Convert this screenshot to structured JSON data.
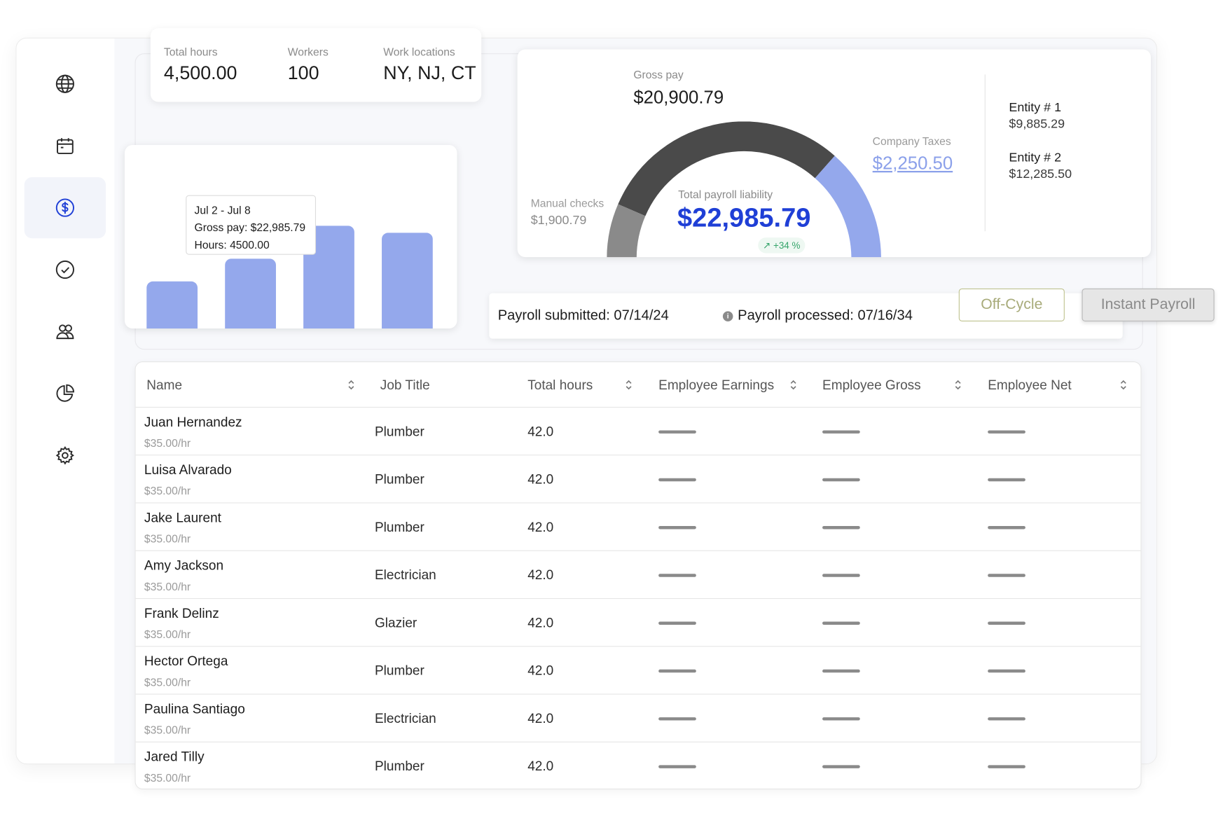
{
  "sidebar": {
    "items": [
      {
        "icon": "globe-icon"
      },
      {
        "icon": "calendar-icon"
      },
      {
        "icon": "dollar-icon",
        "active": true
      },
      {
        "icon": "check-circle-icon"
      },
      {
        "icon": "users-icon"
      },
      {
        "icon": "pie-chart-icon"
      },
      {
        "icon": "gear-icon"
      }
    ]
  },
  "stats": {
    "total_hours_label": "Total hours",
    "total_hours_value": "4,500.00",
    "workers_label": "Workers",
    "workers_value": "100",
    "locations_label": "Work locations",
    "locations_value": "NY, NJ, CT"
  },
  "chart_data": {
    "type": "bar",
    "categories": [
      "",
      "",
      "",
      ""
    ],
    "values": [
      60,
      89,
      131,
      122
    ],
    "tooltip": {
      "title": "Jul 2 - Jul 8",
      "gross": "Gross pay: $22,985.79",
      "hours": "Hours: 4500.00"
    }
  },
  "liability": {
    "gross_label": "Gross pay",
    "gross_value": "$20,900.79",
    "manual_label": "Manual checks",
    "manual_value": "$1,900.79",
    "taxes_label": "Company Taxes",
    "taxes_value": "$2,250.50",
    "total_label": "Total payroll liability",
    "total_value": "$22,985.79",
    "change": "+34 %",
    "colors": {
      "gross": "#4a4a4a",
      "manual": "#8a8a8a",
      "taxes": "#94a8ec",
      "total": "#1f3fd6",
      "change": "#36a56b"
    },
    "entities": [
      {
        "label": "Entity # 1",
        "value": "$9,885.29"
      },
      {
        "label": "Entity # 2",
        "value": "$12,285.50"
      }
    ]
  },
  "status": {
    "submitted": "Payroll submitted: 07/14/24",
    "processed": "Payroll processed: 07/16/34"
  },
  "buttons": {
    "off_cycle": "Off-Cycle",
    "instant": "Instant Payroll"
  },
  "table": {
    "columns": [
      "Name",
      "Job Title",
      "Total hours",
      "Employee Earnings",
      "Employee Gross",
      "Employee Net"
    ],
    "rows": [
      {
        "name": "Juan Hernandez",
        "rate": "$35.00/hr",
        "job": "Plumber",
        "hours": "42.0"
      },
      {
        "name": "Luisa Alvarado",
        "rate": "$35.00/hr",
        "job": "Plumber",
        "hours": "42.0"
      },
      {
        "name": "Jake Laurent",
        "rate": "$35.00/hr",
        "job": "Plumber",
        "hours": "42.0"
      },
      {
        "name": "Amy Jackson",
        "rate": "$35.00/hr",
        "job": "Electrician",
        "hours": "42.0"
      },
      {
        "name": "Frank Delinz",
        "rate": "$35.00/hr",
        "job": "Glazier",
        "hours": "42.0"
      },
      {
        "name": "Hector Ortega",
        "rate": "$35.00/hr",
        "job": "Plumber",
        "hours": "42.0"
      },
      {
        "name": "Paulina Santiago",
        "rate": "$35.00/hr",
        "job": "Electrician",
        "hours": "42.0"
      },
      {
        "name": "Jared Tilly",
        "rate": "$35.00/hr",
        "job": "Plumber",
        "hours": "42.0"
      }
    ]
  }
}
